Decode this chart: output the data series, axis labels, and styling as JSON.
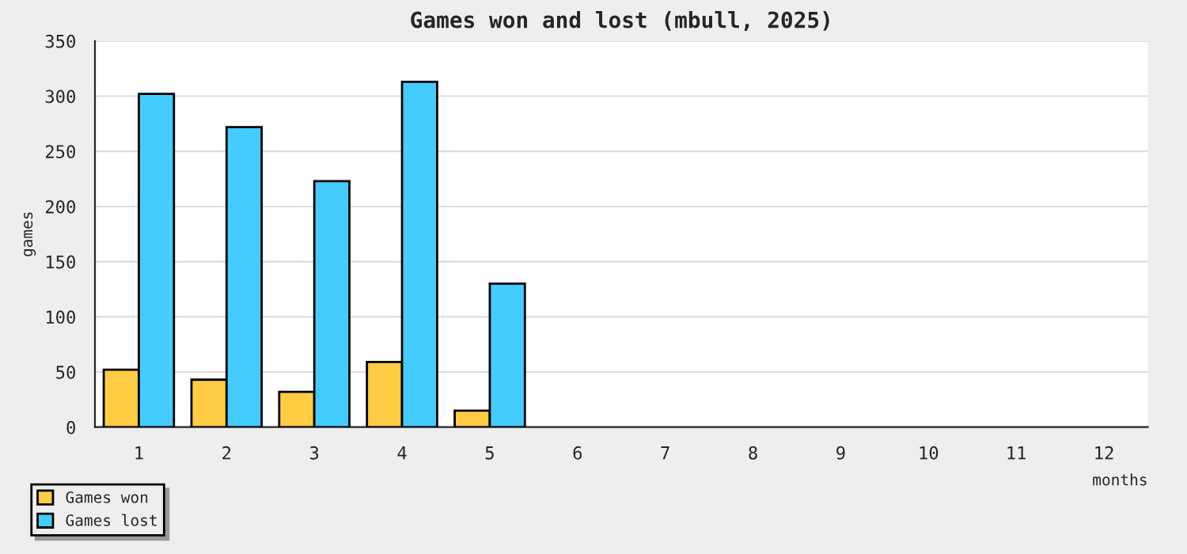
{
  "chart_data": {
    "type": "bar",
    "title": "Games won and lost (mbull, 2025)",
    "xlabel": "months",
    "ylabel": "games",
    "categories": [
      "1",
      "2",
      "3",
      "4",
      "5",
      "6",
      "7",
      "8",
      "9",
      "10",
      "11",
      "12"
    ],
    "series": [
      {
        "name": "Games won",
        "color": "#ffcc44",
        "values": [
          52,
          43,
          32,
          59,
          15,
          null,
          null,
          null,
          null,
          null,
          null,
          null
        ]
      },
      {
        "name": "Games lost",
        "color": "#44ccff",
        "values": [
          302,
          272,
          223,
          313,
          130,
          null,
          null,
          null,
          null,
          null,
          null,
          null
        ]
      }
    ],
    "ylim": [
      0,
      350
    ],
    "yticks": [
      0,
      50,
      100,
      150,
      200,
      250,
      300,
      350
    ],
    "grid": "y",
    "legend": "bottom left"
  }
}
